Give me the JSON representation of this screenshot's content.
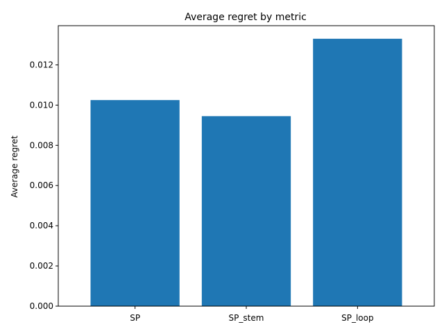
{
  "chart_data": {
    "type": "bar",
    "title": "Average regret by metric",
    "xlabel": "",
    "ylabel": "Average regret",
    "categories": [
      "SP",
      "SP_stem",
      "SP_loop"
    ],
    "values": [
      0.01025,
      0.00945,
      0.0133
    ],
    "ylim": [
      0,
      0.01395
    ],
    "yticks": [
      0,
      0.002,
      0.004,
      0.006,
      0.008,
      0.01,
      0.012
    ],
    "ytick_labels": [
      "0.000",
      "0.002",
      "0.004",
      "0.006",
      "0.008",
      "0.010",
      "0.012"
    ],
    "bar_color": "#1f77b4",
    "grid": false,
    "legend": "none"
  }
}
